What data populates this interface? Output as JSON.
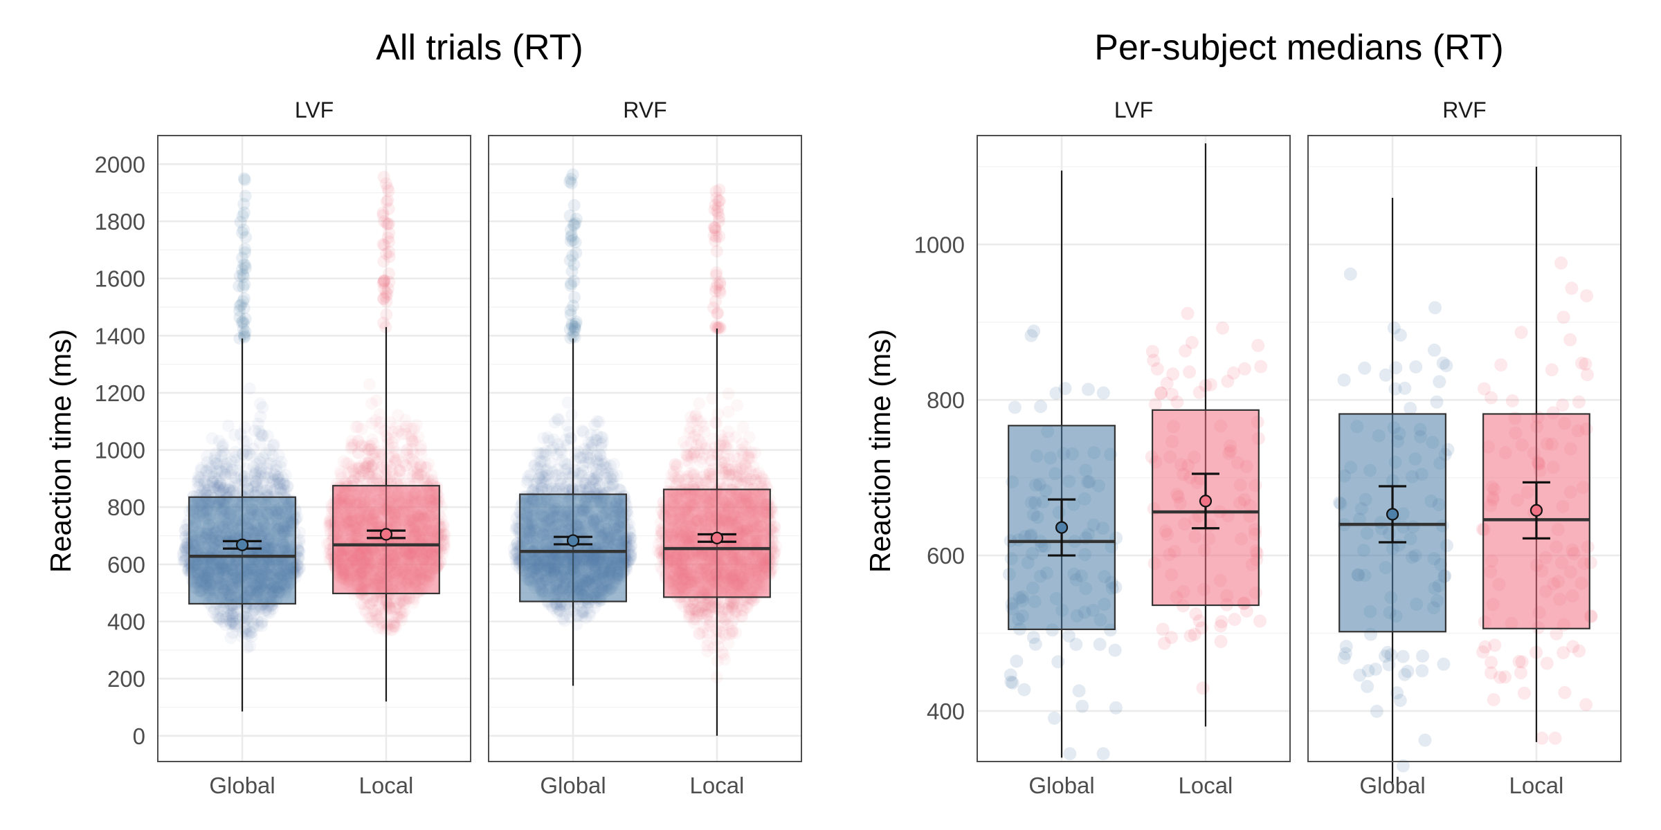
{
  "colors": {
    "global": "#4e7fa8",
    "local": "#f07285",
    "box_line": "#333333",
    "border": "#4d4d4d"
  },
  "chart_data": [
    {
      "type": "box-violin",
      "title": "All trials (RT)",
      "ylabel": "Reaction time (ms)",
      "ylim": [
        -90,
        2100
      ],
      "yticks": [
        0,
        200,
        400,
        600,
        800,
        1000,
        1200,
        1400,
        1600,
        1800,
        2000
      ],
      "yticks_text": [
        "0",
        "200",
        "400",
        "600",
        "800",
        "1000",
        "1200",
        "1400",
        "1600",
        "1800",
        "2000"
      ],
      "grid": true,
      "facets": [
        {
          "name": "LVF",
          "groups": [
            {
              "category": "Global",
              "series": "global",
              "whisker_low": 85,
              "q1": 462,
              "median": 628,
              "q3": 835,
              "whisker_high": 1390,
              "mean": 668,
              "ci": [
                655,
                681
              ],
              "max": 2000
            },
            {
              "category": "Local",
              "series": "local",
              "whisker_low": 120,
              "q1": 498,
              "median": 668,
              "q3": 875,
              "whisker_high": 1430,
              "mean": 705,
              "ci": [
                692,
                718
              ],
              "max": 1960
            }
          ]
        },
        {
          "name": "RVF",
          "groups": [
            {
              "category": "Global",
              "series": "global",
              "whisker_low": 175,
              "q1": 470,
              "median": 645,
              "q3": 845,
              "whisker_high": 1390,
              "mean": 683,
              "ci": [
                670,
                696
              ],
              "max": 1990
            },
            {
              "category": "Local",
              "series": "local",
              "whisker_low": 0,
              "q1": 485,
              "median": 655,
              "q3": 862,
              "whisker_high": 1425,
              "mean": 692,
              "ci": [
                679,
                705
              ],
              "max": 1930
            }
          ]
        }
      ]
    },
    {
      "type": "box-jitter",
      "title": "Per-subject medians (RT)",
      "ylabel": "Reaction time (ms)",
      "ylim": [
        335,
        1140
      ],
      "yticks": [
        400,
        600,
        800,
        1000
      ],
      "yticks_text": [
        "400",
        "600",
        "800",
        "1000"
      ],
      "grid": true,
      "facets": [
        {
          "name": "LVF",
          "groups": [
            {
              "category": "Global",
              "series": "global",
              "whisker_low": 340,
              "q1": 505,
              "median": 618,
              "q3": 767,
              "whisker_high": 1095,
              "mean": 636,
              "ci": [
                600,
                672
              ],
              "n_points": 100
            },
            {
              "category": "Local",
              "series": "local",
              "whisker_low": 380,
              "q1": 536,
              "median": 656,
              "q3": 787,
              "whisker_high": 1130,
              "mean": 670,
              "ci": [
                635,
                705
              ],
              "n_points": 100
            }
          ]
        },
        {
          "name": "RVF",
          "groups": [
            {
              "category": "Global",
              "series": "global",
              "whisker_low": 305,
              "q1": 502,
              "median": 640,
              "q3": 782,
              "whisker_high": 1060,
              "mean": 653,
              "ci": [
                617,
                689
              ],
              "n_points": 100
            },
            {
              "category": "Local",
              "series": "local",
              "whisker_low": 360,
              "q1": 506,
              "median": 646,
              "q3": 782,
              "whisker_high": 1100,
              "mean": 658,
              "ci": [
                622,
                694
              ],
              "n_points": 100
            }
          ]
        }
      ]
    }
  ]
}
